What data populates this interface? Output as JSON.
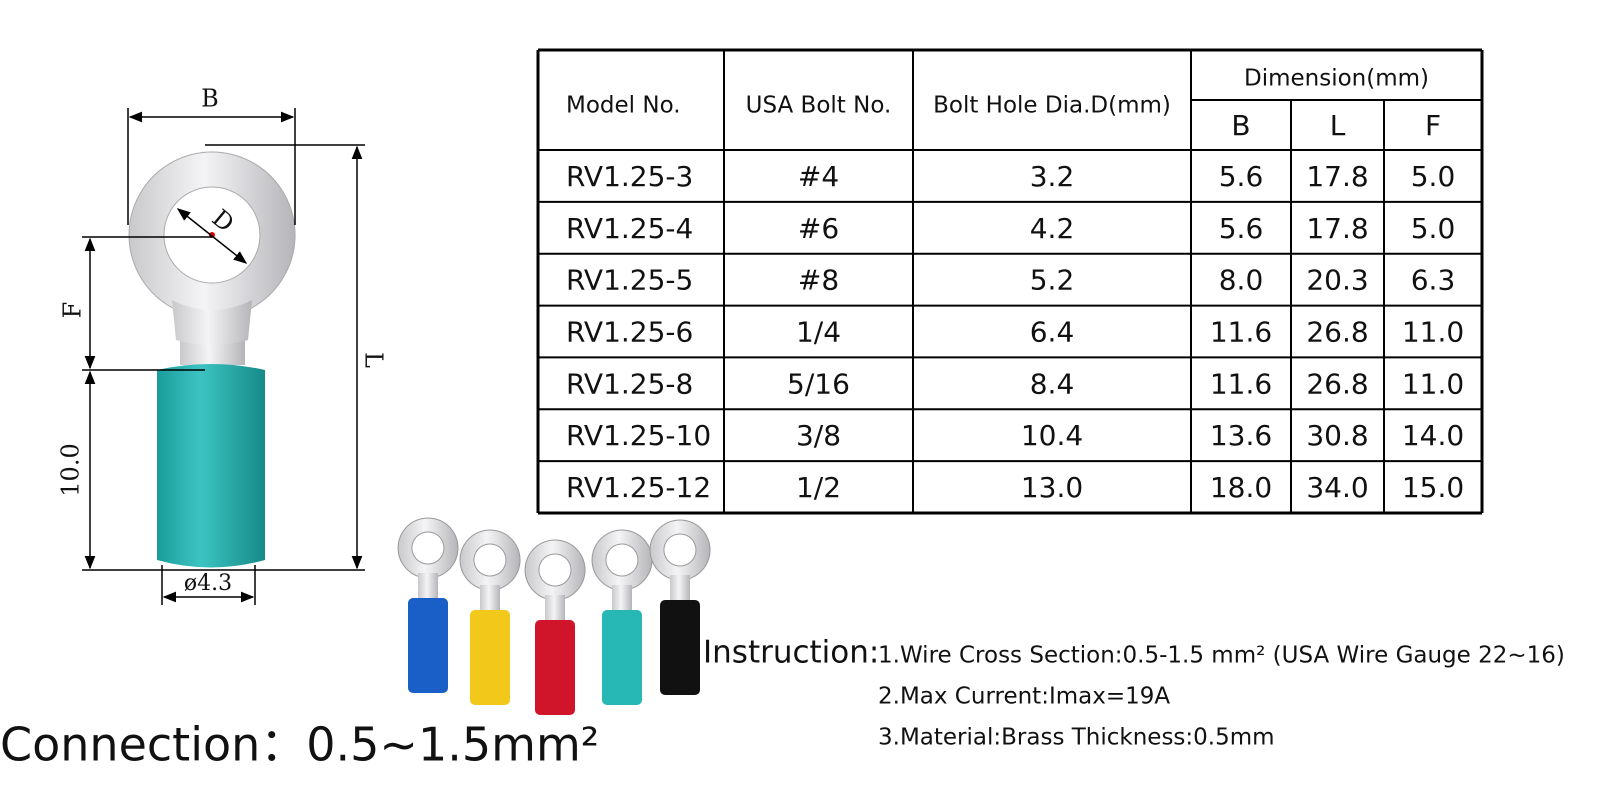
{
  "diagram": {
    "labels": {
      "b": "B",
      "d": "D",
      "f": "F",
      "l": "L",
      "sleeve": "10.0",
      "diameter": "ø4.3"
    }
  },
  "table": {
    "headers": [
      "Model No.",
      "USA Bolt No.",
      "Bolt Hole Dia.D(mm)"
    ],
    "group_header": "Dimension(mm)",
    "subheaders": [
      "B",
      "L",
      "F"
    ],
    "rows": [
      [
        "RV1.25-3",
        "#4",
        "3.2",
        "5.6",
        "17.8",
        "5.0"
      ],
      [
        "RV1.25-4",
        "#6",
        "4.2",
        "5.6",
        "17.8",
        "5.0"
      ],
      [
        "RV1.25-5",
        "#8",
        "5.2",
        "8.0",
        "20.3",
        "6.3"
      ],
      [
        "RV1.25-6",
        "1/4",
        "6.4",
        "11.6",
        "26.8",
        "11.0"
      ],
      [
        "RV1.25-8",
        "5/16",
        "8.4",
        "11.6",
        "26.8",
        "11.0"
      ],
      [
        "RV1.25-10",
        "3/8",
        "10.4",
        "13.6",
        "30.8",
        "14.0"
      ],
      [
        "RV1.25-12",
        "1/2",
        "13.0",
        "18.0",
        "34.0",
        "15.0"
      ]
    ]
  },
  "instruction": {
    "label": "Instruction:",
    "items": [
      "1.Wire Cross Section:0.5-1.5 mm² (USA Wire Gauge 22~16)",
      "2.Max Current:Imax=19A",
      "3.Material:Brass Thickness:0.5mm"
    ]
  },
  "connection": "Connection：0.5~1.5mm²"
}
